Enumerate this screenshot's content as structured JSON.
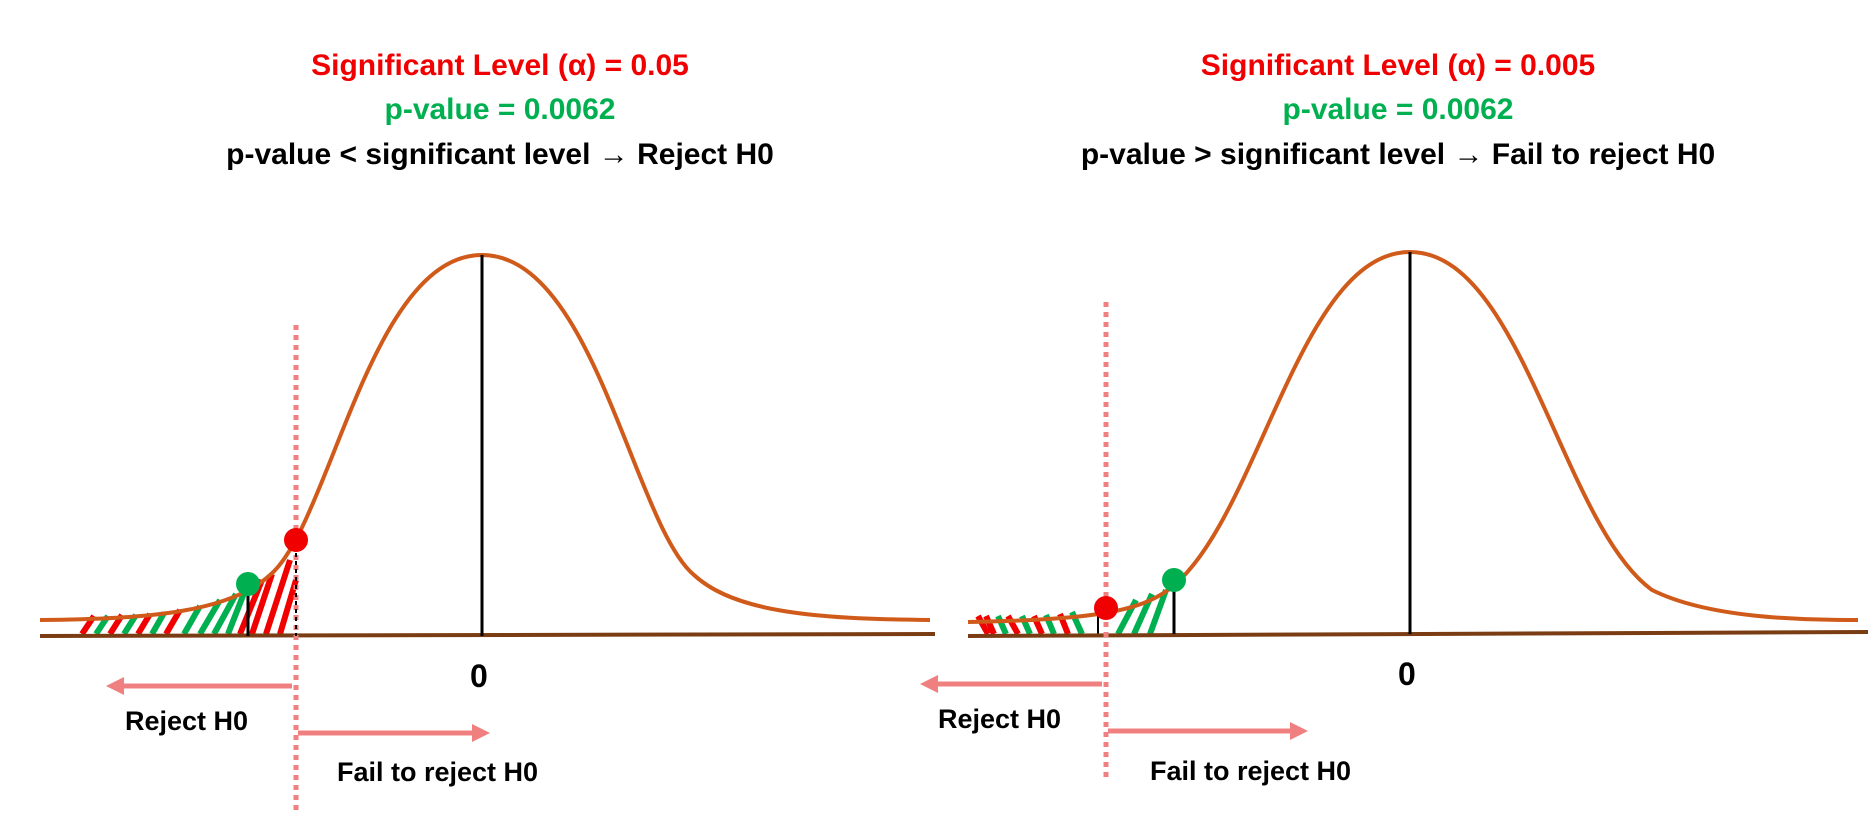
{
  "colors": {
    "alpha": "#f00000",
    "pvalue": "#00b050",
    "curve": "#d05a1a",
    "baseline": "#7a3c12",
    "critical_line": "#f08080",
    "arrow": "#f08080",
    "text": "#000000"
  },
  "panels": [
    {
      "alpha_text": "Significant Level (α) = 0.05",
      "pvalue_text": "p-value = 0.0062",
      "conclusion_text": "p-value < significant level → Reject H0",
      "zero_label": "0",
      "reject_label": "Reject H0",
      "fail_label": "Fail to reject H0",
      "alpha": 0.05,
      "p_value": 0.0062
    },
    {
      "alpha_text": "Significant Level (α) = 0.005",
      "pvalue_text": "p-value = 0.0062",
      "conclusion_text": "p-value > significant level → Fail to reject H0",
      "zero_label": "0",
      "reject_label": "Reject H0",
      "fail_label": "Fail to reject H0",
      "alpha": 0.005,
      "p_value": 0.0062
    }
  ]
}
